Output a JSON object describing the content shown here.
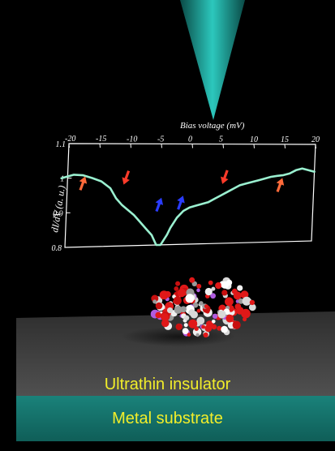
{
  "labels": {
    "insulator": "Ultrathin insulator",
    "substrate": "Metal substrate"
  },
  "colors": {
    "tip": "#25b3aa",
    "curve": "#9af0d0",
    "insulator": "#3c3c3c",
    "substrate": "#15726c",
    "label_text": "#f2ee2a",
    "arrow_red": "#ff3b2a",
    "arrow_orange": "#ff6a3a",
    "arrow_blue": "#2a3cff"
  },
  "chart_data": {
    "type": "line",
    "title": "",
    "xlabel": "Bias voltage (mV)",
    "ylabel": "dI/dV (a. u.)",
    "xlim": [
      -20,
      20
    ],
    "ylim": [
      0.8,
      1.1
    ],
    "x_ticks": [
      -20,
      -15,
      -10,
      -5,
      0,
      5,
      10,
      15,
      20
    ],
    "y_ticks": [
      0.8,
      0.9,
      1.0,
      1.1
    ],
    "x_tick_labels": [
      "-20",
      "-15",
      "-10",
      "-5",
      "0",
      "5",
      "10",
      "15",
      "20"
    ],
    "y_tick_labels": [
      "0.8",
      "0.9",
      "1",
      "1.1"
    ],
    "series": [
      {
        "x": [
          -21,
          -19,
          -17.5,
          -16,
          -14.5,
          -13,
          -12,
          -11,
          -10,
          -9,
          -8,
          -7,
          -6,
          -5.2,
          -4.5,
          -4,
          -3.5,
          -3,
          -2,
          -1,
          0,
          1,
          2,
          3,
          4,
          5,
          6,
          7,
          8,
          9,
          10,
          11,
          12,
          13,
          14,
          15,
          16,
          17,
          18,
          19,
          20
        ],
        "y": [
          1.0,
          1.01,
          1.008,
          1.0,
          0.99,
          0.97,
          0.94,
          0.92,
          0.905,
          0.89,
          0.87,
          0.85,
          0.83,
          0.8,
          0.8,
          0.815,
          0.83,
          0.85,
          0.88,
          0.9,
          0.91,
          0.915,
          0.92,
          0.925,
          0.935,
          0.945,
          0.955,
          0.965,
          0.975,
          0.98,
          0.985,
          0.99,
          0.995,
          1.0,
          1.003,
          1.005,
          1.01,
          1.02,
          1.025,
          1.02,
          1.015
        ]
      }
    ],
    "annotations": [
      {
        "type": "arrow",
        "x": -17.5,
        "y": 0.985,
        "direction": "up",
        "color": "orange"
      },
      {
        "type": "arrow",
        "x": -10.5,
        "y": 1.0,
        "direction": "down",
        "color": "red"
      },
      {
        "type": "arrow",
        "x": -5,
        "y": 0.92,
        "direction": "up",
        "color": "blue"
      },
      {
        "type": "arrow",
        "x": -1.5,
        "y": 0.925,
        "direction": "up",
        "color": "blue"
      },
      {
        "type": "arrow",
        "x": 5.5,
        "y": 1.0,
        "direction": "down",
        "color": "red"
      },
      {
        "type": "arrow",
        "x": 14.5,
        "y": 0.975,
        "direction": "up",
        "color": "orange"
      }
    ],
    "grid": false,
    "legend": "none"
  }
}
